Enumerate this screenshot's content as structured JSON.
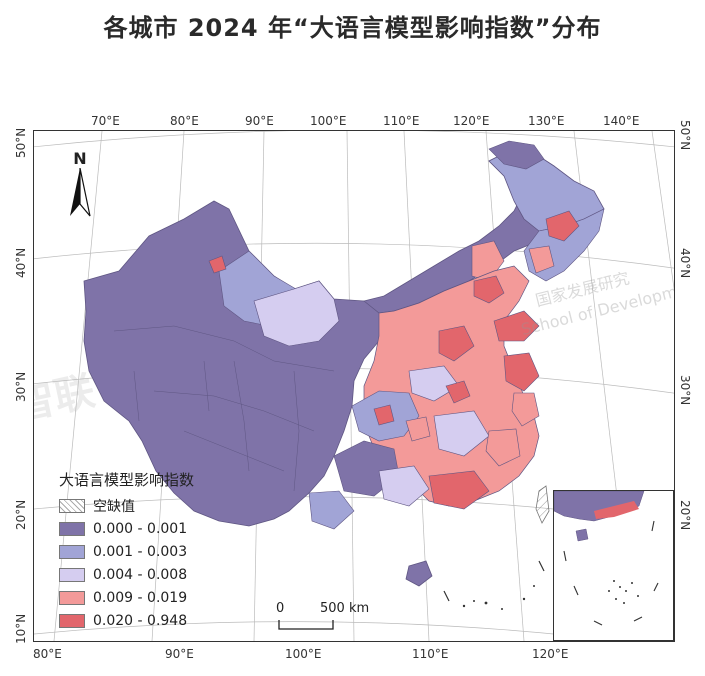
{
  "title": "各城市 2024 年“大语言模型影响指数”分布",
  "legend": {
    "title": "大语言模型影响指数",
    "items": [
      {
        "label": "空缺值",
        "color": "#ffffff",
        "hatched": true
      },
      {
        "label": "0.000 - 0.001",
        "color": "#7f73a8",
        "hatched": false
      },
      {
        "label": "0.001 - 0.003",
        "color": "#a1a4d6",
        "hatched": false
      },
      {
        "label": "0.004 - 0.008",
        "color": "#d5cdf0",
        "hatched": false
      },
      {
        "label": "0.009 - 0.019",
        "color": "#f39a99",
        "hatched": false
      },
      {
        "label": "0.020 - 0.948",
        "color": "#e2666c",
        "hatched": false
      }
    ]
  },
  "scale": {
    "zero": "0",
    "distance": "500 km"
  },
  "north_label": "N",
  "graticule": {
    "top_lon": [
      "70°E",
      "80°E",
      "90°E",
      "100°E",
      "110°E",
      "120°E",
      "130°E",
      "140°E"
    ],
    "bottom_lon": [
      "80°E",
      "90°E",
      "100°E",
      "110°E",
      "120°E"
    ],
    "left_lat": [
      "50°N",
      "40°N",
      "30°N",
      "20°N",
      "10°N"
    ],
    "right_lat": [
      "50°N",
      "40°N",
      "30°N",
      "20°N"
    ]
  },
  "watermarks": [
    "智联",
    "国家发展研究",
    "School of Developm"
  ]
}
